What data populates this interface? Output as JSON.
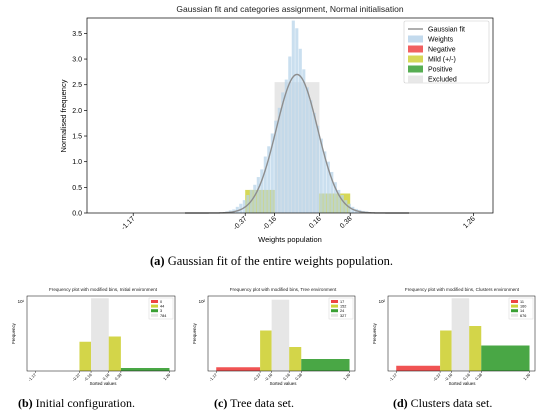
{
  "colors": {
    "negative": "#ef4444",
    "mild": "#cfd13a",
    "positive": "#3aa035",
    "excluded": "#e4e4e4",
    "weights": "#b8d4ea",
    "gaussian": "#8d8d8d",
    "axis": "#000000"
  },
  "captions": {
    "a": {
      "tag": "(a)",
      "text": " Gaussian fit of the entire weights population."
    },
    "b": {
      "tag": "(b)",
      "text": " Initial configuration."
    },
    "c": {
      "tag": "(c)",
      "text": " Tree data set."
    },
    "d": {
      "tag": "(d)",
      "text": " Clusters data set."
    }
  },
  "chart_data": [
    {
      "id": "main",
      "type": "bar",
      "title": "Gaussian fit and categories assignment, Normal initialisation",
      "xlabel": "Weights population",
      "ylabel": "Normalised frequency",
      "xlim": [
        -1.5,
        1.4
      ],
      "ylim": [
        0,
        3.8
      ],
      "yticks": [
        0.0,
        0.5,
        1.0,
        1.5,
        2.0,
        2.5,
        3.0,
        3.5
      ],
      "ytick_labels": [
        "0.0",
        "0.5",
        "1.0",
        "1.5",
        "2.0",
        "2.5",
        "3.0",
        "3.5"
      ],
      "xticks": [
        -1.17,
        -0.37,
        -0.16,
        0.16,
        0.38,
        1.26
      ],
      "xtick_labels": [
        "-1.17",
        "-0.37",
        "-0.16",
        "0.16",
        "0.38",
        "1.26"
      ],
      "grid": false,
      "legend_position": "upper right",
      "legend": [
        {
          "label": "Gaussian fit",
          "kind": "line",
          "color": "#8d8d8d"
        },
        {
          "label": "Weights",
          "kind": "patch",
          "color": "#b8d4ea"
        },
        {
          "label": "Negative",
          "kind": "patch",
          "color": "#ef4444"
        },
        {
          "label": "Mild (+/-)",
          "kind": "patch",
          "color": "#cfd13a"
        },
        {
          "label": "Positive",
          "kind": "patch",
          "color": "#3aa035"
        },
        {
          "label": "Excluded",
          "kind": "patch",
          "color": "#e4e4e4"
        }
      ],
      "category_bars": [
        {
          "category": "Mild (+/-)",
          "x0": -0.37,
          "x1": -0.16,
          "value": 0.45
        },
        {
          "category": "Excluded",
          "x0": -0.16,
          "x1": 0.16,
          "value": 2.55
        },
        {
          "category": "Mild (+/-)",
          "x0": 0.16,
          "x1": 0.38,
          "value": 0.38
        }
      ],
      "gaussian_fit": {
        "mean": 0.0,
        "std": 0.148,
        "peak": 2.7
      },
      "weights_histogram": {
        "bin_width": 0.025,
        "bins": [
          {
            "x": -0.5,
            "value": 0.03
          },
          {
            "x": -0.475,
            "value": 0.05
          },
          {
            "x": -0.45,
            "value": 0.07
          },
          {
            "x": -0.425,
            "value": 0.12
          },
          {
            "x": -0.4,
            "value": 0.18
          },
          {
            "x": -0.375,
            "value": 0.25
          },
          {
            "x": -0.35,
            "value": 0.35
          },
          {
            "x": -0.325,
            "value": 0.45
          },
          {
            "x": -0.3,
            "value": 0.55
          },
          {
            "x": -0.275,
            "value": 0.7
          },
          {
            "x": -0.25,
            "value": 0.85
          },
          {
            "x": -0.225,
            "value": 1.1
          },
          {
            "x": -0.2,
            "value": 1.3
          },
          {
            "x": -0.175,
            "value": 1.55
          },
          {
            "x": -0.15,
            "value": 1.8
          },
          {
            "x": -0.125,
            "value": 2.05
          },
          {
            "x": -0.1,
            "value": 2.35
          },
          {
            "x": -0.075,
            "value": 2.6
          },
          {
            "x": -0.05,
            "value": 3.05
          },
          {
            "x": -0.025,
            "value": 3.75
          },
          {
            "x": 0.0,
            "value": 3.6
          },
          {
            "x": 0.025,
            "value": 3.2
          },
          {
            "x": 0.05,
            "value": 2.8
          },
          {
            "x": 0.075,
            "value": 2.45
          },
          {
            "x": 0.1,
            "value": 2.2
          },
          {
            "x": 0.125,
            "value": 1.95
          },
          {
            "x": 0.15,
            "value": 1.7
          },
          {
            "x": 0.175,
            "value": 1.45
          },
          {
            "x": 0.2,
            "value": 1.2
          },
          {
            "x": 0.225,
            "value": 1.0
          },
          {
            "x": 0.25,
            "value": 0.8
          },
          {
            "x": 0.275,
            "value": 0.6
          },
          {
            "x": 0.3,
            "value": 0.45
          },
          {
            "x": 0.325,
            "value": 0.35
          },
          {
            "x": 0.35,
            "value": 0.25
          },
          {
            "x": 0.375,
            "value": 0.18
          },
          {
            "x": 0.4,
            "value": 0.12
          },
          {
            "x": 0.425,
            "value": 0.08
          },
          {
            "x": 0.45,
            "value": 0.06
          },
          {
            "x": 0.475,
            "value": 0.04
          },
          {
            "x": 0.5,
            "value": 0.03
          }
        ]
      }
    },
    {
      "id": "b",
      "type": "bar",
      "title": "Frequency plot with modified bins, Initial environment",
      "xlabel": "Sorted values",
      "ylabel": "Frequency",
      "log_y": true,
      "ylim": [
        0,
        1
      ],
      "xlim": [
        -1.32,
        1.36
      ],
      "xticks": [
        -1.17,
        -0.37,
        -0.16,
        0.16,
        0.38,
        1.26
      ],
      "xtick_labels": [
        "-1.17",
        "-0.37",
        "-0.16",
        "0.16",
        "0.38",
        "1.26"
      ],
      "ytick_label": "10¹",
      "legend_position": "upper right",
      "legend": [
        {
          "label": "0",
          "color": "#ef4444"
        },
        {
          "label": "44",
          "color": "#cfd13a"
        },
        {
          "label": "3",
          "color": "#3aa035"
        },
        {
          "label": "784",
          "color": "#e4e4e4"
        }
      ],
      "bars": [
        {
          "category": "Mild (+/-)",
          "x0": -0.37,
          "x1": -0.16,
          "value": 0.39
        },
        {
          "category": "Excluded",
          "x0": -0.16,
          "x1": 0.16,
          "value": 0.97
        },
        {
          "category": "Mild (+/-)",
          "x0": 0.16,
          "x1": 0.38,
          "value": 0.46
        },
        {
          "category": "Positive",
          "x0": 0.38,
          "x1": 1.26,
          "value": 0.04
        }
      ]
    },
    {
      "id": "c",
      "type": "bar",
      "title": "Frequency plot with modified bins, Tree environment",
      "xlabel": "Sorted values",
      "ylabel": "Frequency",
      "log_y": true,
      "ylim": [
        0,
        1
      ],
      "xlim": [
        -1.32,
        1.36
      ],
      "xticks": [
        -1.17,
        -0.37,
        -0.16,
        0.16,
        0.38,
        1.26
      ],
      "xtick_labels": [
        "-1.17",
        "-0.37",
        "-0.16",
        "0.16",
        "0.38",
        "1.26"
      ],
      "ytick_label": "10²",
      "legend_position": "upper right",
      "legend": [
        {
          "label": "17",
          "color": "#ef4444"
        },
        {
          "label": "152",
          "color": "#cfd13a"
        },
        {
          "label": "24",
          "color": "#3aa035"
        },
        {
          "label": "327",
          "color": "#e4e4e4"
        }
      ],
      "bars": [
        {
          "category": "Negative",
          "x0": -1.17,
          "x1": -0.37,
          "value": 0.05
        },
        {
          "category": "Mild (+/-)",
          "x0": -0.37,
          "x1": -0.16,
          "value": 0.54
        },
        {
          "category": "Excluded",
          "x0": -0.16,
          "x1": 0.16,
          "value": 0.95
        },
        {
          "category": "Mild (+/-)",
          "x0": 0.16,
          "x1": 0.38,
          "value": 0.32
        },
        {
          "category": "Positive",
          "x0": 0.38,
          "x1": 1.26,
          "value": 0.16
        }
      ]
    },
    {
      "id": "d",
      "type": "bar",
      "title": "Frequency plot with modified bins, Clusters environment",
      "xlabel": "Sorted values",
      "ylabel": "Frequency",
      "log_y": true,
      "ylim": [
        0,
        1
      ],
      "xlim": [
        -1.32,
        1.36
      ],
      "xticks": [
        -1.17,
        -0.37,
        -0.16,
        0.16,
        0.38,
        1.26
      ],
      "xtick_labels": [
        "-1.17",
        "-0.37",
        "-0.16",
        "0.16",
        "0.38",
        "1.26"
      ],
      "ytick_label": "10²",
      "legend_position": "upper right",
      "legend": [
        {
          "label": "11",
          "color": "#ef4444"
        },
        {
          "label": "160",
          "color": "#cfd13a"
        },
        {
          "label": "14",
          "color": "#3aa035"
        },
        {
          "label": "676",
          "color": "#e4e4e4"
        }
      ],
      "bars": [
        {
          "category": "Negative",
          "x0": -1.17,
          "x1": -0.37,
          "value": 0.07
        },
        {
          "category": "Mild (+/-)",
          "x0": -0.37,
          "x1": -0.16,
          "value": 0.54
        },
        {
          "category": "Excluded",
          "x0": -0.16,
          "x1": 0.16,
          "value": 0.97
        },
        {
          "category": "Mild (+/-)",
          "x0": 0.16,
          "x1": 0.38,
          "value": 0.6
        },
        {
          "category": "Positive",
          "x0": 0.38,
          "x1": 1.26,
          "value": 0.34
        }
      ]
    }
  ]
}
